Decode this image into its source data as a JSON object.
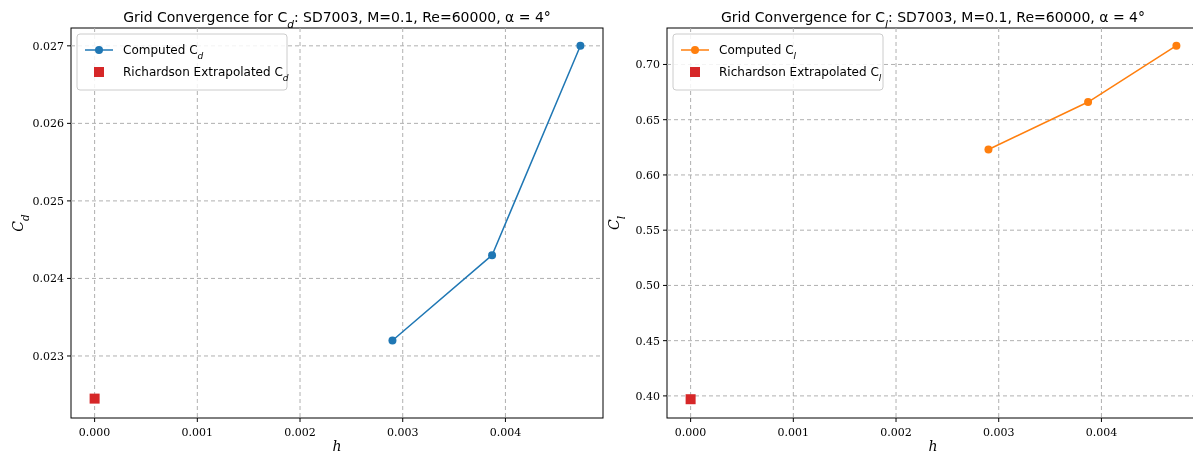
{
  "chart_data": [
    {
      "type": "line",
      "title": "Grid Convergence for C$_{d}$: SD7003, M=0.1, Re=60000, α = 4°",
      "xlabel": "h",
      "ylabel": "C$_{d}$",
      "xlim": [
        -0.00023,
        0.00495
      ],
      "xticks": [
        {
          "value": 0,
          "label": "0.000"
        },
        {
          "value": 0.001,
          "label": "0.001"
        },
        {
          "value": 0.002,
          "label": "0.002"
        },
        {
          "value": 0.003,
          "label": "0.003"
        },
        {
          "value": 0.004,
          "label": "0.004"
        }
      ],
      "ylim": [
        0.0222,
        0.02723
      ],
      "yticks": [
        0.023,
        0.024,
        0.025,
        0.026,
        0.027
      ],
      "grid": true,
      "legend": "top left",
      "series": [
        {
          "name": "Computed C$_{d}$",
          "marker": "circle",
          "color": "#1f77b4",
          "x": [
            0.0029,
            0.00387,
            0.00473
          ],
          "values": [
            0.0232,
            0.0243,
            0.027
          ]
        },
        {
          "name": "Richardson Extrapolated C$_{d}$",
          "type": "scatter",
          "marker": "square",
          "color": "#d62728",
          "x": [
            0
          ],
          "values": [
            0.02245
          ]
        }
      ]
    },
    {
      "type": "line",
      "title": "Grid Convergence for C$_{l}$: SD7003, M=0.1, Re=60000, α = 4°",
      "xlabel": "h",
      "ylabel": "C$_{l}$",
      "xlim": [
        -0.00023,
        0.00495
      ],
      "xticks": [
        {
          "value": 0,
          "label": "0.000"
        },
        {
          "value": 0.001,
          "label": "0.001"
        },
        {
          "value": 0.002,
          "label": "0.002"
        },
        {
          "value": 0.003,
          "label": "0.003"
        },
        {
          "value": 0.004,
          "label": "0.004"
        }
      ],
      "ylim": [
        0.38,
        0.733
      ],
      "yticks": [
        {
          "value": 0.4,
          "label": "0.40"
        },
        {
          "value": 0.45,
          "label": "0.45"
        },
        {
          "value": 0.5,
          "label": "0.50"
        },
        {
          "value": 0.55,
          "label": "0.55"
        },
        {
          "value": 0.6,
          "label": "0.60"
        },
        {
          "value": 0.65,
          "label": "0.65"
        },
        {
          "value": 0.7,
          "label": "0.70"
        }
      ],
      "grid": true,
      "legend": "top left",
      "series": [
        {
          "name": "Computed C$_{l}$",
          "marker": "circle",
          "color": "#ff7f0e",
          "x": [
            0.0029,
            0.00387,
            0.00473
          ],
          "values": [
            0.623,
            0.666,
            0.717
          ]
        },
        {
          "name": "Richardson Extrapolated C$_{l}$",
          "type": "scatter",
          "marker": "square",
          "color": "#d62728",
          "x": [
            0
          ],
          "values": [
            0.397
          ]
        }
      ]
    }
  ]
}
